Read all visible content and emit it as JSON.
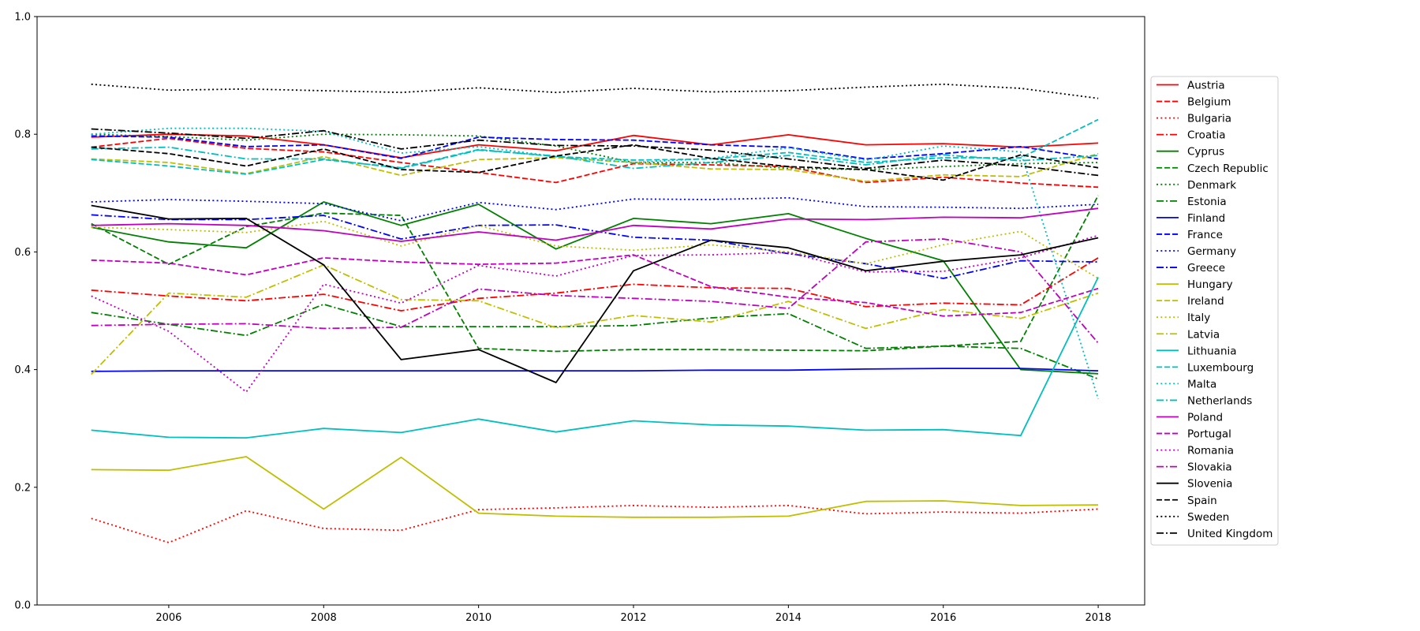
{
  "chart_data": {
    "type": "line",
    "title": "",
    "xlabel": "",
    "ylabel": "",
    "xlim": [
      2004.3,
      2018.6
    ],
    "ylim": [
      0.0,
      1.0
    ],
    "x_ticks": [
      2006,
      2008,
      2010,
      2012,
      2014,
      2016,
      2018
    ],
    "y_ticks": [
      0.0,
      0.2,
      0.4,
      0.6,
      0.8,
      1.0
    ],
    "x_tick_labels": [
      "2006",
      "2008",
      "2010",
      "2012",
      "2014",
      "2016",
      "2018"
    ],
    "y_tick_labels": [
      "0.0",
      "0.2",
      "0.4",
      "0.6",
      "0.8",
      "1.0"
    ],
    "grid": false,
    "legend_position": "outside-right",
    "x": [
      2005,
      2006,
      2007,
      2008,
      2009,
      2010,
      2011,
      2012,
      2013,
      2014,
      2015,
      2016,
      2017,
      2018
    ],
    "series": [
      {
        "name": "Austria",
        "color": "#ff0000",
        "dash": "solid",
        "values": [
          0.795,
          0.8,
          0.797,
          0.782,
          0.76,
          0.782,
          0.772,
          0.798,
          0.782,
          0.799,
          0.782,
          0.784,
          0.778,
          0.785
        ]
      },
      {
        "name": "Belgium",
        "color": "#ff0000",
        "dash": "dashed",
        "values": [
          0.778,
          0.793,
          0.776,
          0.77,
          0.752,
          0.735,
          0.718,
          0.75,
          0.748,
          0.745,
          0.718,
          0.727,
          0.717,
          0.71
        ]
      },
      {
        "name": "Bulgaria",
        "color": "#ff0000",
        "dash": "dotted",
        "values": [
          0.147,
          0.106,
          0.16,
          0.13,
          0.127,
          0.162,
          0.165,
          0.169,
          0.166,
          0.169,
          0.155,
          0.158,
          0.156,
          0.163
        ]
      },
      {
        "name": "Croatia",
        "color": "#ff0000",
        "dash": "dashdot",
        "values": [
          0.535,
          0.525,
          0.517,
          0.528,
          0.5,
          0.521,
          0.53,
          0.545,
          0.539,
          0.538,
          0.507,
          0.513,
          0.51,
          0.59
        ]
      },
      {
        "name": "Cyprus",
        "color": "#008000",
        "dash": "solid",
        "values": [
          0.642,
          0.617,
          0.607,
          0.685,
          0.645,
          0.681,
          0.605,
          0.657,
          0.648,
          0.665,
          0.623,
          0.585,
          0.4,
          0.393
        ]
      },
      {
        "name": "Czech Republic",
        "color": "#008000",
        "dash": "dashed",
        "values": [
          0.648,
          0.579,
          0.643,
          0.666,
          0.662,
          0.436,
          0.431,
          0.434,
          0.434,
          0.433,
          0.432,
          0.44,
          0.448,
          0.696
        ]
      },
      {
        "name": "Denmark",
        "color": "#008000",
        "dash": "dotted",
        "values": [
          0.8,
          0.796,
          0.79,
          0.8,
          0.799,
          0.797,
          0.78,
          0.752,
          0.752,
          0.742,
          0.74,
          0.745,
          0.75,
          0.752
        ]
      },
      {
        "name": "Estonia",
        "color": "#008000",
        "dash": "dashdot",
        "values": [
          0.497,
          0.477,
          0.458,
          0.511,
          0.473,
          0.473,
          0.473,
          0.475,
          0.488,
          0.495,
          0.436,
          0.44,
          0.436,
          0.384
        ]
      },
      {
        "name": "Finland",
        "color": "#0000ff",
        "dash": "solid",
        "values": [
          0.397,
          0.398,
          0.398,
          0.398,
          0.398,
          0.398,
          0.398,
          0.398,
          0.399,
          0.399,
          0.401,
          0.402,
          0.402,
          0.398
        ]
      },
      {
        "name": "France",
        "color": "#0000ff",
        "dash": "dashed",
        "values": [
          0.797,
          0.795,
          0.779,
          0.782,
          0.759,
          0.795,
          0.791,
          0.79,
          0.782,
          0.778,
          0.758,
          0.767,
          0.779,
          0.758
        ]
      },
      {
        "name": "Germany",
        "color": "#0000ff",
        "dash": "dotted",
        "values": [
          0.685,
          0.689,
          0.686,
          0.682,
          0.653,
          0.684,
          0.672,
          0.69,
          0.689,
          0.692,
          0.677,
          0.676,
          0.674,
          0.681
        ]
      },
      {
        "name": "Greece",
        "color": "#0000ff",
        "dash": "dashdot",
        "values": [
          0.663,
          0.655,
          0.655,
          0.662,
          0.622,
          0.645,
          0.646,
          0.625,
          0.62,
          0.597,
          0.58,
          0.555,
          0.585,
          0.583
        ]
      },
      {
        "name": "Hungary",
        "color": "#bfbf00",
        "dash": "solid",
        "values": [
          0.23,
          0.229,
          0.252,
          0.163,
          0.251,
          0.156,
          0.151,
          0.149,
          0.149,
          0.151,
          0.176,
          0.177,
          0.169,
          0.17
        ]
      },
      {
        "name": "Ireland",
        "color": "#bfbf00",
        "dash": "dashed",
        "values": [
          0.758,
          0.752,
          0.733,
          0.762,
          0.73,
          0.757,
          0.76,
          0.752,
          0.741,
          0.74,
          0.72,
          0.731,
          0.728,
          0.767
        ]
      },
      {
        "name": "Italy",
        "color": "#bfbf00",
        "dash": "dotted",
        "values": [
          0.642,
          0.638,
          0.633,
          0.652,
          0.61,
          0.645,
          0.61,
          0.603,
          0.612,
          0.6,
          0.58,
          0.612,
          0.635,
          0.555
        ]
      },
      {
        "name": "Latvia",
        "color": "#bfbf00",
        "dash": "dashdot",
        "values": [
          0.392,
          0.53,
          0.523,
          0.578,
          0.519,
          0.517,
          0.471,
          0.492,
          0.481,
          0.516,
          0.47,
          0.502,
          0.487,
          0.53
        ]
      },
      {
        "name": "Lithuania",
        "color": "#00bfbf",
        "dash": "solid",
        "values": [
          0.297,
          0.285,
          0.284,
          0.3,
          0.293,
          0.316,
          0.294,
          0.313,
          0.306,
          0.304,
          0.297,
          0.298,
          0.288,
          0.557
        ]
      },
      {
        "name": "Luxembourg",
        "color": "#00bfbf",
        "dash": "dashed",
        "values": [
          0.757,
          0.746,
          0.732,
          0.757,
          0.743,
          0.774,
          0.762,
          0.756,
          0.758,
          0.769,
          0.752,
          0.76,
          0.76,
          0.825
        ]
      },
      {
        "name": "Malta",
        "color": "#00bfbf",
        "dash": "dotted",
        "values": [
          0.8,
          0.81,
          0.81,
          0.805,
          0.768,
          0.779,
          0.762,
          0.752,
          0.759,
          0.777,
          0.756,
          0.78,
          0.77,
          0.35
        ]
      },
      {
        "name": "Netherlands",
        "color": "#00bfbf",
        "dash": "dashdot",
        "values": [
          0.775,
          0.778,
          0.758,
          0.758,
          0.742,
          0.773,
          0.763,
          0.742,
          0.752,
          0.764,
          0.748,
          0.765,
          0.755,
          0.764
        ]
      },
      {
        "name": "Poland",
        "color": "#bf00bf",
        "dash": "solid",
        "values": [
          0.645,
          0.648,
          0.645,
          0.636,
          0.618,
          0.634,
          0.62,
          0.645,
          0.639,
          0.656,
          0.655,
          0.659,
          0.658,
          0.674
        ]
      },
      {
        "name": "Portugal",
        "color": "#bf00bf",
        "dash": "dashed",
        "values": [
          0.586,
          0.581,
          0.561,
          0.59,
          0.583,
          0.579,
          0.581,
          0.595,
          0.541,
          0.523,
          0.514,
          0.491,
          0.497,
          0.538
        ]
      },
      {
        "name": "Romania",
        "color": "#bf00bf",
        "dash": "dotted",
        "values": [
          0.525,
          0.465,
          0.362,
          0.545,
          0.513,
          0.577,
          0.559,
          0.594,
          0.595,
          0.599,
          0.566,
          0.567,
          0.59,
          0.628
        ]
      },
      {
        "name": "Slovakia",
        "color": "#bf00bf",
        "dash": "dashdot",
        "values": [
          0.475,
          0.477,
          0.478,
          0.47,
          0.472,
          0.537,
          0.526,
          0.521,
          0.516,
          0.504,
          0.617,
          0.622,
          0.6,
          0.445
        ]
      },
      {
        "name": "Slovenia",
        "color": "#000000",
        "dash": "solid",
        "values": [
          0.679,
          0.656,
          0.657,
          0.578,
          0.417,
          0.434,
          0.378,
          0.568,
          0.62,
          0.607,
          0.568,
          0.584,
          0.595,
          0.624
        ]
      },
      {
        "name": "Spain",
        "color": "#000000",
        "dash": "dashed",
        "values": [
          0.778,
          0.767,
          0.746,
          0.775,
          0.74,
          0.735,
          0.763,
          0.782,
          0.759,
          0.745,
          0.74,
          0.722,
          0.765,
          0.743
        ]
      },
      {
        "name": "Sweden",
        "color": "#000000",
        "dash": "dotted",
        "values": [
          0.885,
          0.875,
          0.877,
          0.874,
          0.871,
          0.879,
          0.871,
          0.878,
          0.872,
          0.874,
          0.88,
          0.885,
          0.878,
          0.861
        ]
      },
      {
        "name": "United Kingdom",
        "color": "#000000",
        "dash": "dashdot",
        "values": [
          0.809,
          0.802,
          0.793,
          0.806,
          0.775,
          0.79,
          0.781,
          0.78,
          0.773,
          0.758,
          0.742,
          0.756,
          0.746,
          0.73
        ]
      }
    ]
  }
}
